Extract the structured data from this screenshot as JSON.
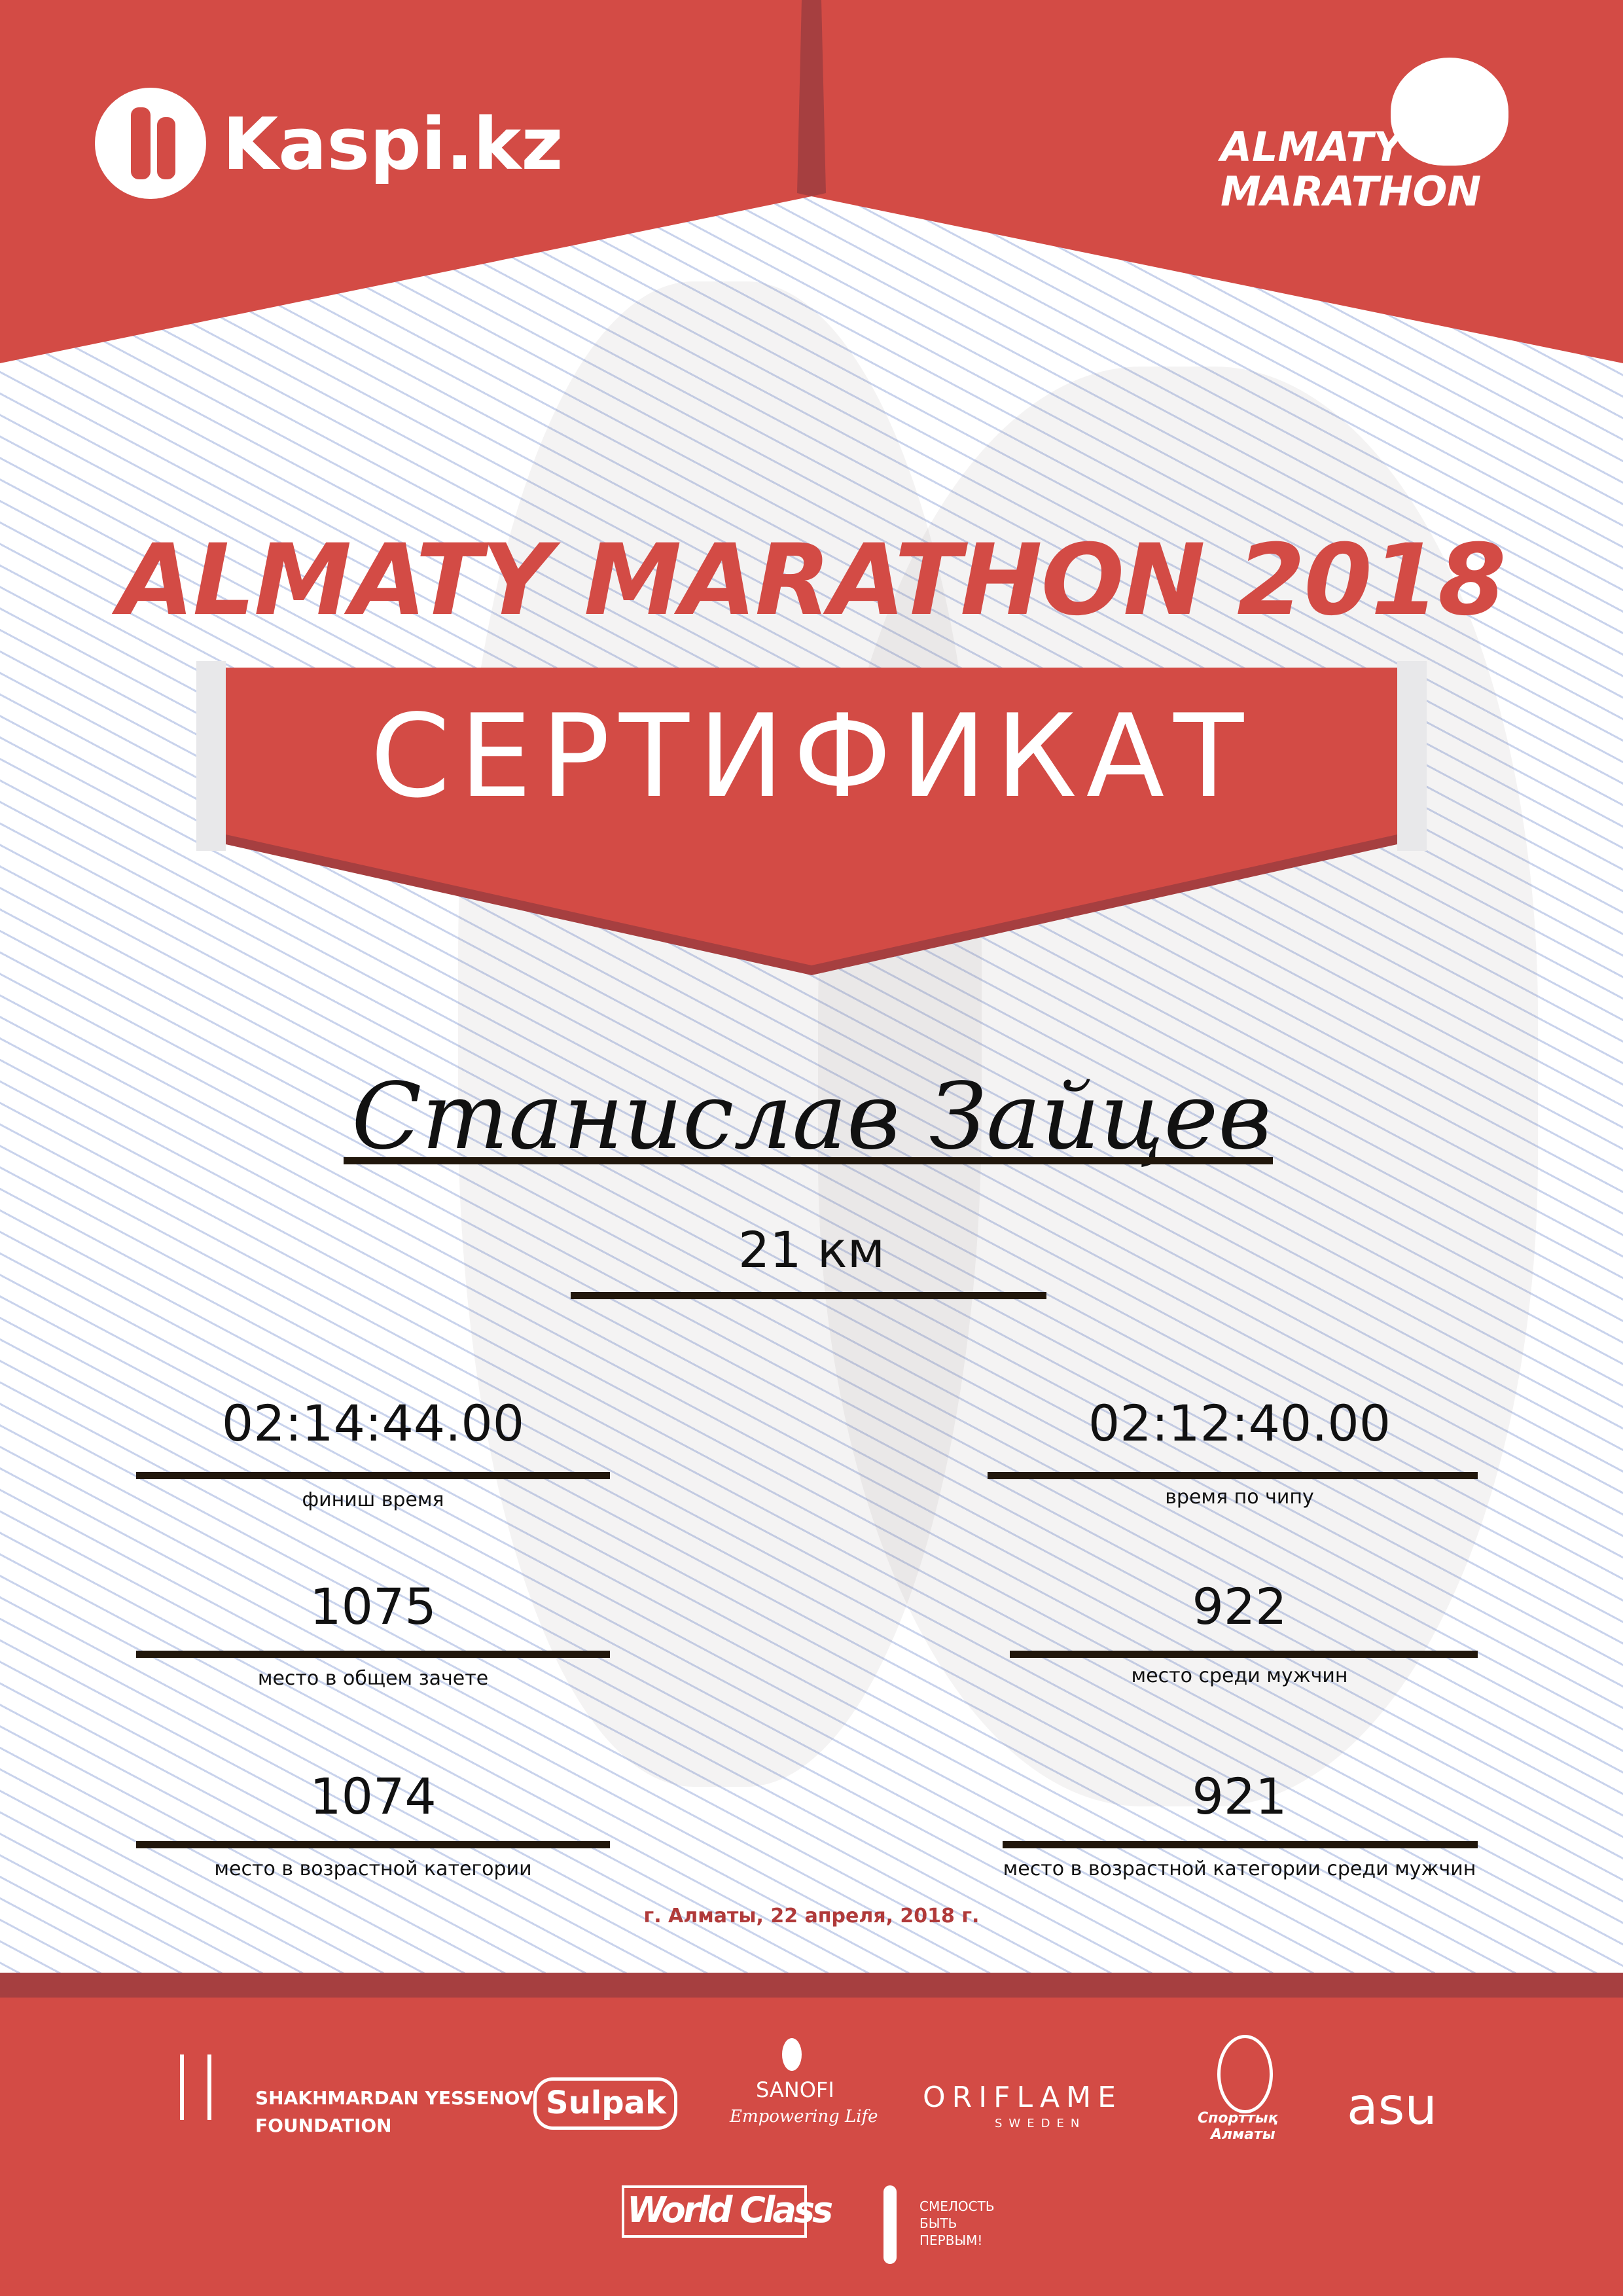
{
  "header": {
    "left_logo": "Kaspi.kz",
    "right_logo": [
      "ALMATY",
      "MARATHON"
    ]
  },
  "title": "ALMATY MARATHON 2018",
  "banner": "СЕРТИФИКАТ",
  "participant": {
    "name": "Станислав Зайцев",
    "distance": "21 км"
  },
  "results": [
    {
      "value": "02:14:44.00",
      "label": "финиш время"
    },
    {
      "value": "02:12:40.00",
      "label": "время по чипу"
    },
    {
      "value": "1075",
      "label": "место в общем зачете"
    },
    {
      "value": "922",
      "label": "место среди мужчин"
    },
    {
      "value": "1074",
      "label": "место в возрастной категории"
    },
    {
      "value": "921",
      "label": "место в возрастной категории среди мужчин"
    }
  ],
  "date_line": "г. Алматы, 22 апреля, 2018 г.",
  "sponsors": {
    "yessenov": [
      "SHAKHMARDAN YESSENOV",
      "FOUNDATION"
    ],
    "sulpak": "Sulpak",
    "sanofi": [
      "SANOFI",
      "Empowering Life"
    ],
    "oriflame": [
      "ORIFLAME",
      "SWEDEN"
    ],
    "sport_almaty": [
      "Спорттық",
      "Алматы"
    ],
    "asu": "asu",
    "worldclass": "World Class",
    "fund": [
      "СМЕЛОСТЬ",
      "БЫТЬ",
      "ПЕРВЫМ!"
    ]
  },
  "colors": {
    "primary_red": "#d34b45",
    "dark_red": "#a63f40",
    "date_red": "#b03a3a"
  }
}
